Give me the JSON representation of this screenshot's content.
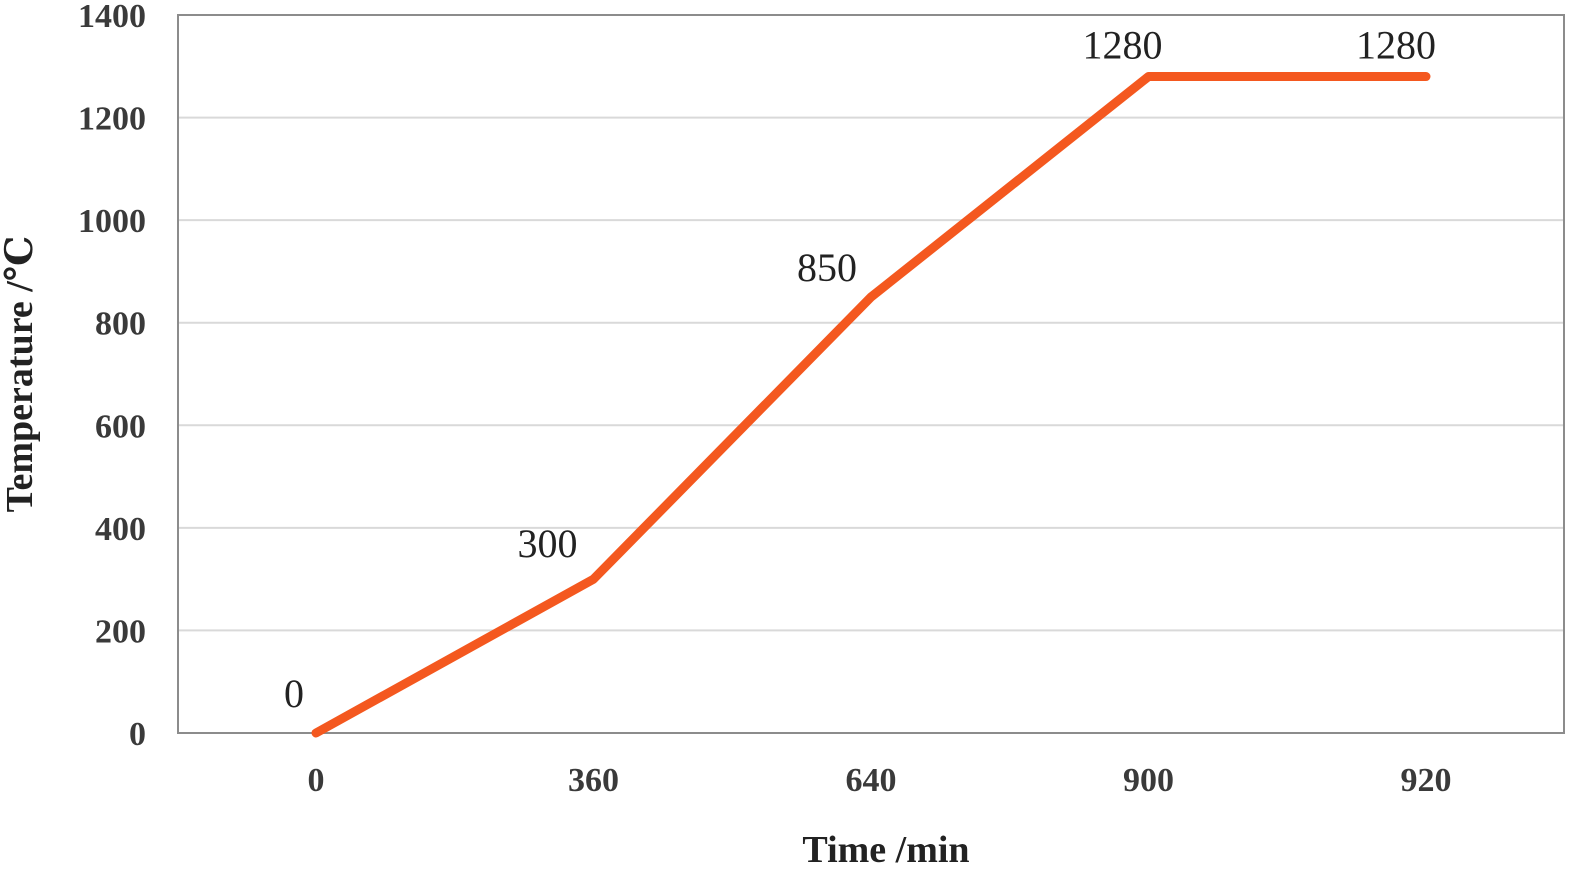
{
  "chart_data": {
    "type": "line",
    "categories": [
      "0",
      "360",
      "640",
      "900",
      "920"
    ],
    "series": [
      {
        "values": [
          0,
          300,
          850,
          1280,
          1280
        ]
      }
    ],
    "data_labels": [
      "0",
      "300",
      "850",
      "1280",
      "1280"
    ],
    "xlabel": "Time /min",
    "ylabel": "Temperature /℃",
    "ylim": [
      0,
      1400
    ],
    "yticks": [
      "0",
      "200",
      "400",
      "600",
      "800",
      "1000",
      "1200",
      "1400"
    ],
    "grid": true,
    "legend": "none",
    "line_color": "#f4581f"
  }
}
